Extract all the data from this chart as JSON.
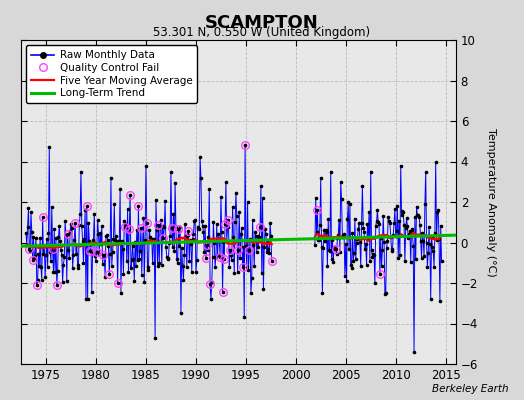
{
  "title": "SCAMPTON",
  "subtitle": "53.301 N, 0.550 W (United Kingdom)",
  "ylabel": "Temperature Anomaly (°C)",
  "watermark": "Berkeley Earth",
  "fig_bg_color": "#d8d8d8",
  "plot_bg_color": "#e8e8e8",
  "ylim": [
    -6,
    10
  ],
  "xlim": [
    1972.5,
    2016.0
  ],
  "yticks": [
    -6,
    -4,
    -2,
    0,
    2,
    4,
    6,
    8,
    10
  ],
  "xticks": [
    1975,
    1980,
    1985,
    1990,
    1995,
    2000,
    2005,
    2010,
    2015
  ],
  "raw_color": "#0000ff",
  "dot_color": "#000000",
  "qc_color": "#ff44ff",
  "ma_color": "#ff0000",
  "trend_color": "#00bb00",
  "legend_labels": [
    "Raw Monthly Data",
    "Quality Control Fail",
    "Five Year Moving Average",
    "Long-Term Trend"
  ],
  "seed": 42
}
